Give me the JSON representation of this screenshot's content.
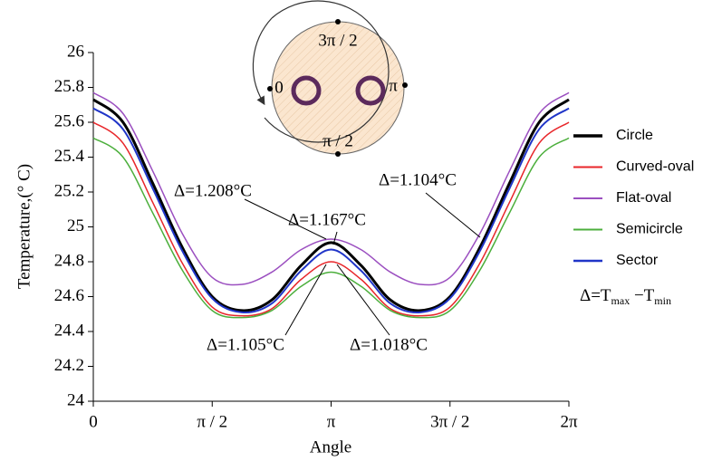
{
  "chart_data": {
    "type": "line",
    "y_label": "Temperature,(° C)",
    "x_label": "Angle",
    "x": [
      0,
      0.3927,
      0.7854,
      1.1781,
      1.5708,
      1.9635,
      2.3562,
      2.7489,
      3.1416,
      3.5343,
      3.927,
      4.3197,
      4.7124,
      5.1051,
      5.4978,
      5.8905,
      6.2832
    ],
    "xlim": [
      0,
      6.2832
    ],
    "xticks": [
      {
        "value": 0,
        "label": "0"
      },
      {
        "value": 1.5708,
        "label": "π / 2"
      },
      {
        "value": 3.1416,
        "label": "π"
      },
      {
        "value": 4.7124,
        "label": "3π / 2"
      },
      {
        "value": 6.2832,
        "label": "2π"
      }
    ],
    "ylim": [
      24,
      26
    ],
    "yticks": [
      24,
      24.2,
      24.4,
      24.6,
      24.8,
      25,
      25.2,
      25.4,
      25.6,
      25.8,
      26
    ],
    "series": [
      {
        "name": "Circle",
        "color": "#000000",
        "width": 3,
        "values": [
          25.73,
          25.6,
          25.25,
          24.88,
          24.6,
          24.52,
          24.58,
          24.78,
          24.91,
          24.78,
          24.58,
          24.52,
          24.6,
          24.88,
          25.25,
          25.6,
          25.73
        ]
      },
      {
        "name": "Curved-oval",
        "color": "#e8262a",
        "width": 1.5,
        "values": [
          25.6,
          25.48,
          25.14,
          24.79,
          24.54,
          24.49,
          24.53,
          24.7,
          24.8,
          24.7,
          24.53,
          24.49,
          24.54,
          24.79,
          25.14,
          25.48,
          25.6
        ]
      },
      {
        "name": "Flat-oval",
        "color": "#9b4fc0",
        "width": 1.5,
        "values": [
          25.77,
          25.65,
          25.32,
          24.96,
          24.71,
          24.67,
          24.74,
          24.87,
          24.93,
          24.87,
          24.74,
          24.67,
          24.71,
          24.96,
          25.32,
          25.65,
          25.77
        ]
      },
      {
        "name": "Semicircle",
        "color": "#4caf3c",
        "width": 1.5,
        "values": [
          25.51,
          25.4,
          25.08,
          24.75,
          24.52,
          24.48,
          24.52,
          24.66,
          24.74,
          24.66,
          24.52,
          24.48,
          24.52,
          24.75,
          25.08,
          25.4,
          25.51
        ]
      },
      {
        "name": "Sector",
        "color": "#2035c8",
        "width": 2,
        "values": [
          25.68,
          25.56,
          25.22,
          24.86,
          24.59,
          24.51,
          24.56,
          24.75,
          24.87,
          24.75,
          24.56,
          24.51,
          24.59,
          24.86,
          25.22,
          25.56,
          25.68
        ]
      }
    ],
    "annotations": [
      "Δ=1.208°C",
      "Δ=1.167°C",
      "Δ=1.104°C",
      "Δ=1.105°C",
      "Δ=1.018°C"
    ],
    "formula": [
      "Δ=T",
      "max",
      " −T",
      "min"
    ],
    "inset_labels": [
      "3π / 2",
      "0",
      "π",
      "π / 2"
    ]
  }
}
